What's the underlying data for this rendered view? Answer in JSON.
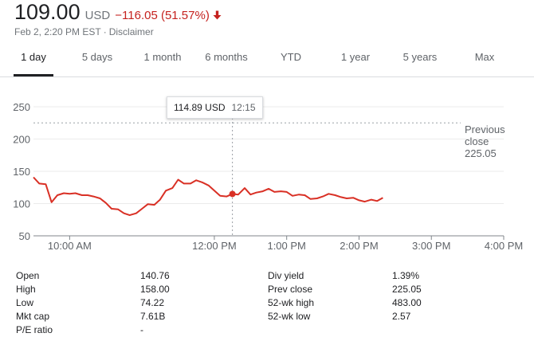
{
  "quote": {
    "price": "109.00",
    "currency": "USD",
    "change": "−116.05 (51.57%)",
    "timestamp": "Feb 2, 2:20 PM EST",
    "separator": "·",
    "disclaimer": "Disclaimer",
    "down_color": "#c5221f"
  },
  "tabs": [
    {
      "label": "1 day",
      "active": true
    },
    {
      "label": "5 days"
    },
    {
      "label": "1 month"
    },
    {
      "label": "6 months"
    },
    {
      "label": "YTD"
    },
    {
      "label": "1 year"
    },
    {
      "label": "5 years"
    },
    {
      "label": "Max"
    }
  ],
  "tooltip": {
    "value": "114.89 USD",
    "time": "12:15"
  },
  "previous_close": {
    "line1": "Previous",
    "line2": "close",
    "value": "225.05"
  },
  "chart_data": {
    "type": "line",
    "line_color": "#d93025",
    "y_ticks": [
      50,
      100,
      150,
      200,
      250
    ],
    "ylim": [
      50,
      250
    ],
    "x_ticks": [
      "10:00 AM",
      "12:00 PM",
      "1:00 PM",
      "2:00 PM",
      "3:00 PM",
      "4:00 PM"
    ],
    "x_tick_hours": [
      10,
      12,
      13,
      14,
      15,
      16
    ],
    "xlim_hours": [
      9.5,
      16
    ],
    "previous_close": 225.05,
    "highlight": {
      "hour": 12.25,
      "value": 114.89
    },
    "series": [
      {
        "x": [
          9.5,
          9.58,
          9.67,
          9.75,
          9.83,
          9.92,
          10.0,
          10.08,
          10.17,
          10.25,
          10.33,
          10.42,
          10.5,
          10.58,
          10.67,
          10.75,
          10.83,
          10.92,
          11.0,
          11.08,
          11.17,
          11.25,
          11.33,
          11.42,
          11.5,
          11.58,
          11.67,
          11.75,
          11.83,
          11.92,
          12.0,
          12.08,
          12.17,
          12.25,
          12.33,
          12.42,
          12.5,
          12.58,
          12.67,
          12.75,
          12.83,
          12.92,
          13.0,
          13.08,
          13.17,
          13.25,
          13.33,
          13.42,
          13.5,
          13.58,
          13.67,
          13.75,
          13.83,
          13.92,
          14.0,
          14.08,
          14.17,
          14.25,
          14.33
        ],
        "y": [
          140.76,
          131,
          130,
          102,
          113,
          116,
          115,
          116,
          113,
          113,
          111,
          108,
          101,
          92,
          91,
          85,
          82,
          85,
          92,
          99,
          98,
          106,
          120,
          124,
          137,
          131,
          131,
          136,
          133,
          128,
          120,
          112,
          111,
          114.89,
          114,
          124,
          114,
          117,
          119,
          123,
          118,
          119,
          118,
          112,
          114,
          113,
          107,
          108,
          111,
          115,
          113,
          110,
          108,
          109,
          105,
          103,
          106,
          104,
          109
        ]
      }
    ]
  },
  "stats": {
    "left": [
      {
        "label": "Open",
        "value": "140.76"
      },
      {
        "label": "High",
        "value": "158.00"
      },
      {
        "label": "Low",
        "value": "74.22"
      },
      {
        "label": "Mkt cap",
        "value": "7.61B"
      },
      {
        "label": "P/E ratio",
        "value": "-"
      }
    ],
    "right": [
      {
        "label": "Div yield",
        "value": "1.39%"
      },
      {
        "label": "Prev close",
        "value": "225.05"
      },
      {
        "label": "52-wk high",
        "value": "483.00"
      },
      {
        "label": "52-wk low",
        "value": "2.57"
      }
    ]
  }
}
